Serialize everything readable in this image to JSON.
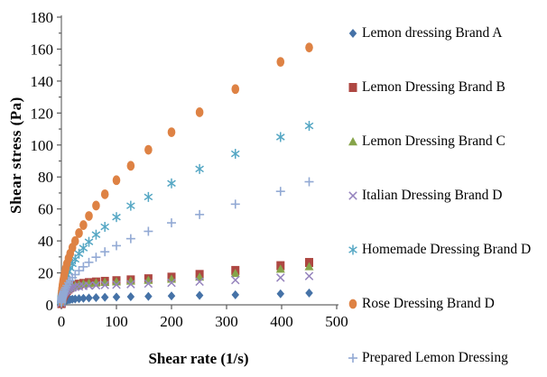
{
  "chart_data": {
    "type": "scatter",
    "title": "",
    "xlabel": "Shear rate (1/s)",
    "ylabel": "Shear stress (Pa)",
    "xlim": [
      0,
      500
    ],
    "ylim": [
      0,
      180
    ],
    "xticks": [
      0,
      100,
      200,
      300,
      400,
      500
    ],
    "yticks": [
      0,
      20,
      40,
      60,
      80,
      100,
      120,
      140,
      160,
      180
    ],
    "y_minor_step": 10,
    "grid": false,
    "legend_position": "right",
    "x": [
      0.1,
      0.13,
      0.16,
      0.2,
      0.25,
      0.32,
      0.4,
      0.5,
      0.63,
      0.79,
      1,
      1.3,
      1.6,
      2,
      2.5,
      3.2,
      4,
      5,
      6.3,
      7.9,
      10,
      13,
      16,
      20,
      25,
      32,
      40,
      50,
      63,
      79,
      100,
      126,
      158,
      200,
      251,
      316,
      398,
      450
    ],
    "series": [
      {
        "name": "Lemon dressing Brand A",
        "marker": "diamond",
        "color": "#4572A7",
        "values": [
          0.4,
          0.45,
          0.5,
          0.55,
          0.6,
          0.7,
          0.8,
          0.9,
          1,
          1.1,
          1.2,
          1.35,
          1.5,
          1.65,
          1.8,
          2,
          2.1,
          2.3,
          2.5,
          2.7,
          2.9,
          3.1,
          3.3,
          3.5,
          3.7,
          3.9,
          4.1,
          4.3,
          4.5,
          4.7,
          4.9,
          5.1,
          5.3,
          5.6,
          5.9,
          6.3,
          6.9,
          7.4
        ]
      },
      {
        "name": "Lemon Dressing Brand B",
        "marker": "square",
        "color": "#AE4742",
        "values": [
          0.8,
          0.9,
          1,
          1.2,
          1.4,
          1.6,
          1.8,
          2.1,
          2.4,
          2.7,
          3.1,
          3.5,
          3.9,
          4.3,
          4.8,
          5.4,
          6,
          6.7,
          7.4,
          8.2,
          9,
          9.9,
          10.7,
          11.5,
          12.2,
          12.9,
          13.4,
          13.9,
          14.3,
          14.7,
          15.1,
          15.6,
          16.3,
          17.3,
          19,
          21.5,
          24.5,
          26.5
        ]
      },
      {
        "name": "Lemon Dressing Brand C",
        "marker": "triangle",
        "color": "#86A44A",
        "values": [
          1.5,
          1.7,
          1.9,
          2.1,
          2.4,
          2.7,
          3,
          3.3,
          3.7,
          4.1,
          4.5,
          5,
          5.4,
          5.9,
          6.4,
          7,
          7.5,
          8.1,
          8.7,
          9.3,
          9.9,
          10.6,
          11.1,
          11.7,
          12.2,
          12.8,
          13.2,
          13.6,
          14,
          14.3,
          14.6,
          15,
          15.5,
          16.2,
          17.5,
          19.8,
          22.5,
          24
        ]
      },
      {
        "name": "Italian Dressing Brand D",
        "marker": "x",
        "color": "#9583BD",
        "values": [
          1.2,
          1.4,
          1.6,
          1.8,
          2.1,
          2.4,
          2.7,
          3,
          3.4,
          3.8,
          4.2,
          4.7,
          5.1,
          5.6,
          6.1,
          6.7,
          7.2,
          7.8,
          8.4,
          8.9,
          9.4,
          10,
          10.4,
          10.8,
          11.2,
          11.5,
          11.8,
          12,
          12.2,
          12.4,
          12.6,
          12.9,
          13.3,
          13.8,
          14.5,
          15.5,
          17,
          18
        ]
      },
      {
        "name": "Homemade Dressing Brand D",
        "marker": "asterisk",
        "color": "#55A7C4",
        "values": [
          2.1,
          2.4,
          2.7,
          3,
          3.3,
          3.7,
          4.1,
          4.5,
          5.1,
          5.6,
          6.3,
          7.1,
          7.8,
          8.7,
          9.7,
          10.9,
          12.1,
          13.4,
          15,
          16.6,
          18.6,
          21,
          23.2,
          25.7,
          28.5,
          32,
          35.5,
          39.4,
          43.9,
          48.8,
          54.9,
          62,
          67.5,
          76,
          85,
          94.5,
          105,
          112
        ]
      },
      {
        "name": "Rose Dressing Brand D",
        "marker": "circle",
        "color": "#DE8244",
        "values": [
          2.8,
          3.2,
          3.5,
          3.9,
          4.4,
          4.9,
          5.5,
          6.1,
          6.8,
          7.6,
          8.5,
          9.6,
          10.7,
          11.9,
          13.2,
          14.9,
          16.5,
          18.4,
          20.5,
          22.9,
          25.7,
          29.1,
          32.1,
          35.8,
          39.9,
          44.9,
          49.9,
          55.6,
          62.1,
          69.2,
          78,
          87,
          97,
          108,
          120.5,
          135,
          152,
          161
        ]
      },
      {
        "name": "Prepared Lemon Dressing",
        "marker": "plus",
        "color": "#92A9D4",
        "values": [
          1.3,
          1.4,
          1.6,
          1.8,
          2,
          2.2,
          2.5,
          2.8,
          3.1,
          3.5,
          3.9,
          4.5,
          4.9,
          5.5,
          6.1,
          6.9,
          7.7,
          8.6,
          9.7,
          10.8,
          12.1,
          13.8,
          15.2,
          17,
          18.9,
          21.4,
          23.8,
          26.6,
          29.8,
          33.2,
          37,
          41.4,
          46,
          51.3,
          56.5,
          63,
          71,
          77
        ]
      }
    ]
  },
  "axis_style": {
    "line_color": "#808080",
    "tick_color": "#595959",
    "label_color": "#000000"
  }
}
